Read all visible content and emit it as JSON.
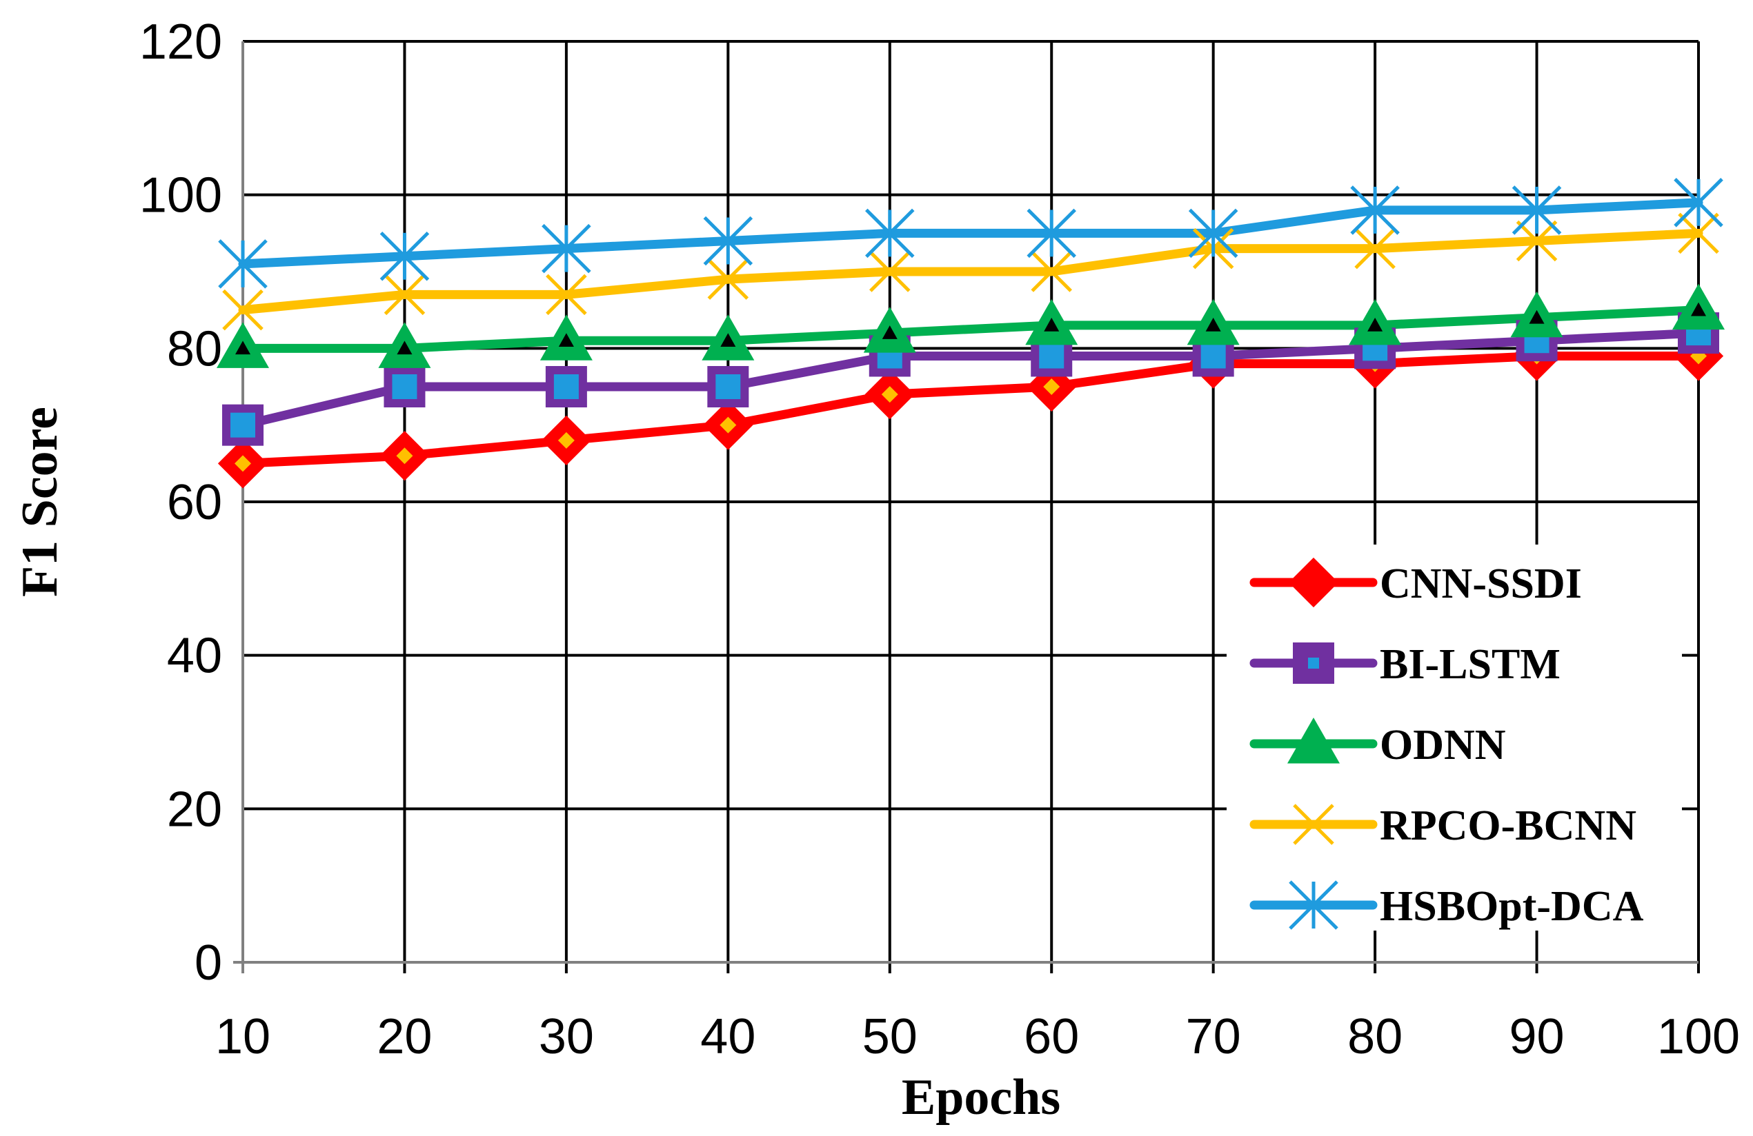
{
  "chart_data": {
    "type": "line",
    "title": "",
    "xlabel": "Epochs",
    "ylabel": "F1 Score",
    "x": [
      10,
      20,
      30,
      40,
      50,
      60,
      70,
      80,
      90,
      100
    ],
    "x_tick_labels": [
      "10",
      "20",
      "30",
      "40",
      "50",
      "60",
      "70",
      "80",
      "90",
      "100"
    ],
    "ylim": [
      0,
      120
    ],
    "y_ticks": [
      0,
      20,
      40,
      60,
      80,
      100,
      120
    ],
    "y_tick_labels": [
      "0",
      "20",
      "40",
      "60",
      "80",
      "100",
      "120"
    ],
    "grid": true,
    "legend_position": "bottom-right",
    "series": [
      {
        "name": "CNN-SSDI",
        "color": "#ff0000",
        "marker": "diamond",
        "marker_inner_color": "#ffc000",
        "values": [
          65,
          66,
          68,
          70,
          74,
          75,
          78,
          78,
          79,
          79
        ]
      },
      {
        "name": "BI-LSTM",
        "color": "#7030a0",
        "marker": "square",
        "marker_inner_color": "#1f9bde",
        "values": [
          70,
          75,
          75,
          75,
          79,
          79,
          79,
          80,
          81,
          82
        ]
      },
      {
        "name": "ODNN",
        "color": "#00b050",
        "marker": "triangle",
        "marker_inner_color": "#000000",
        "values": [
          80,
          80,
          81,
          81,
          82,
          83,
          83,
          83,
          84,
          85
        ]
      },
      {
        "name": "RPCO-BCNN",
        "color": "#ffc000",
        "marker": "x",
        "values": [
          85,
          87,
          87,
          89,
          90,
          90,
          93,
          93,
          94,
          95
        ]
      },
      {
        "name": "HSBOpt-DCA",
        "color": "#1f9bde",
        "marker": "star",
        "values": [
          91,
          92,
          93,
          94,
          95,
          95,
          95,
          98,
          98,
          99
        ]
      }
    ]
  }
}
